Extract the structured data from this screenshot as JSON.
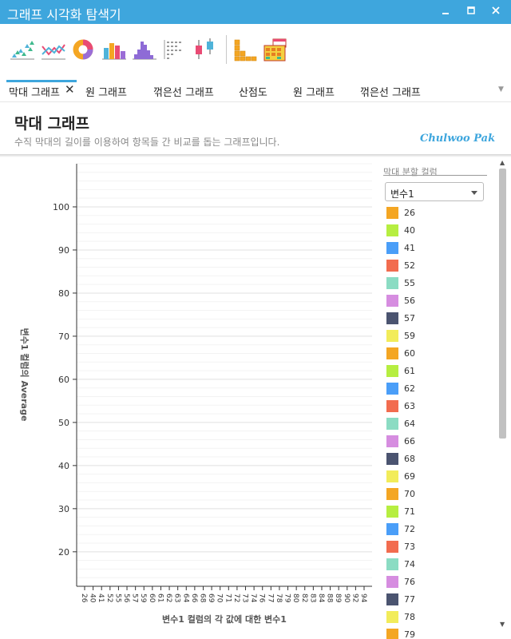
{
  "window": {
    "title": "그래프 시각화 탐색기",
    "minimize_icon": "minimize-icon",
    "maximize_icon": "maximize-icon",
    "close_icon": "close-icon"
  },
  "toolbar": {
    "icons": [
      "scatter-chart-icon",
      "line-chart-icon",
      "donut-chart-icon",
      "bar-chart-icon",
      "histogram-icon",
      "dot-matrix-icon",
      "box-plot-icon",
      "stacked-blocks-icon",
      "pivot-table-icon"
    ]
  },
  "tabs": [
    {
      "label": "막대 그래프",
      "active": true
    },
    {
      "label": "원 그래프"
    },
    {
      "label": "꺾은선 그래프"
    },
    {
      "label": "산점도"
    },
    {
      "label": "원 그래프"
    },
    {
      "label": "꺾은선 그래프"
    }
  ],
  "header": {
    "title": "막대 그래프",
    "description": "수직 막대의 길이를 이용하여 항목들 간 비교를 돕는 그래프입니다.",
    "brand": "Chulwoo Pak"
  },
  "legend": {
    "title": "막대 분할 컬럼",
    "selected": "변수1",
    "colors": [
      "#f4a623",
      "#b6ee41",
      "#4a9ef8",
      "#f26c4f",
      "#8bdcc3",
      "#d68de0",
      "#4b5470",
      "#f2ec5a"
    ],
    "items": [
      "26",
      "40",
      "41",
      "52",
      "55",
      "56",
      "57",
      "59",
      "60",
      "61",
      "62",
      "63",
      "64",
      "66",
      "68",
      "69",
      "70",
      "71",
      "72",
      "73",
      "74",
      "76",
      "77",
      "78",
      "79"
    ]
  },
  "chart_data": {
    "type": "bar",
    "xlabel": "변수1 컬럼의 각 값에 대한 변수1",
    "ylabel": "변수1 컬럼의 Average",
    "categories": [
      "26",
      "40",
      "41",
      "52",
      "55",
      "56",
      "57",
      "59",
      "60",
      "61",
      "62",
      "63",
      "64",
      "66",
      "68",
      "69",
      "70",
      "71",
      "72",
      "73",
      "74",
      "76",
      "77",
      "78",
      "79",
      "80",
      "82",
      "83",
      "84",
      "88",
      "89",
      "90",
      "92",
      "94"
    ],
    "y_ticks": [
      20,
      30,
      40,
      50,
      60,
      70,
      80,
      90,
      100
    ],
    "ylim": [
      12,
      110
    ],
    "minor_grid_step": 2,
    "grid": true,
    "legend_position": "right",
    "series": []
  }
}
